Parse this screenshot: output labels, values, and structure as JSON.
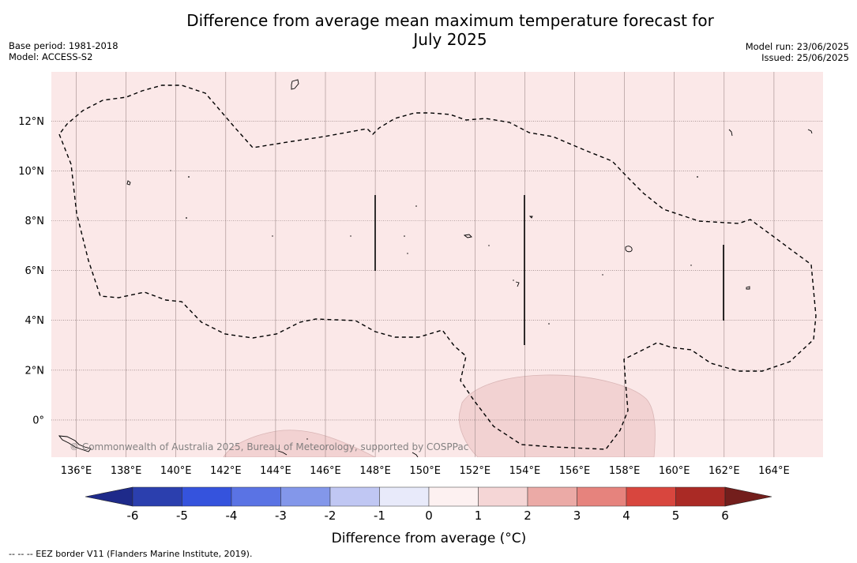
{
  "title": {
    "line1": "Difference from average mean maximum temperature forecast for",
    "line2": "July 2025"
  },
  "meta_left": {
    "base_period": "Base period: 1981-2018",
    "model": "Model: ACCESS-S2"
  },
  "meta_right": {
    "model_run": "Model run: 23/06/2025",
    "issued": "Issued: 25/06/2025"
  },
  "map": {
    "lon_ticks": [
      "136°E",
      "138°E",
      "140°E",
      "142°E",
      "144°E",
      "146°E",
      "148°E",
      "150°E",
      "152°E",
      "154°E",
      "156°E",
      "158°E",
      "160°E",
      "162°E",
      "164°E"
    ],
    "lat_ticks": [
      "12°N",
      "10°N",
      "8°N",
      "6°N",
      "4°N",
      "2°N",
      "0°"
    ],
    "background_color": "#fbe8e8",
    "warm_patch_color": "#f2d2d2",
    "copyright": "© Commonwealth of Australia 2025, Bureau of Meteorology, supported by COSPPac"
  },
  "colorbar": {
    "label": "Difference from average (°C)",
    "tick_labels": [
      "-6",
      "-5",
      "-4",
      "-3",
      "-2",
      "-1",
      "0",
      "1",
      "2",
      "3",
      "4",
      "5",
      "6"
    ],
    "colors": [
      "#1e2a8a",
      "#2b3fae",
      "#3553dd",
      "#5a73e4",
      "#8397ea",
      "#c0c7f3",
      "#e8eafa",
      "#fdf1f1",
      "#f5d6d6",
      "#ebaaa6",
      "#e6837d",
      "#d8463e",
      "#aa2a25",
      "#731e1c"
    ]
  },
  "footer": "--  --  -- EEZ border V11 (Flanders Marine Institute, 2019)."
}
